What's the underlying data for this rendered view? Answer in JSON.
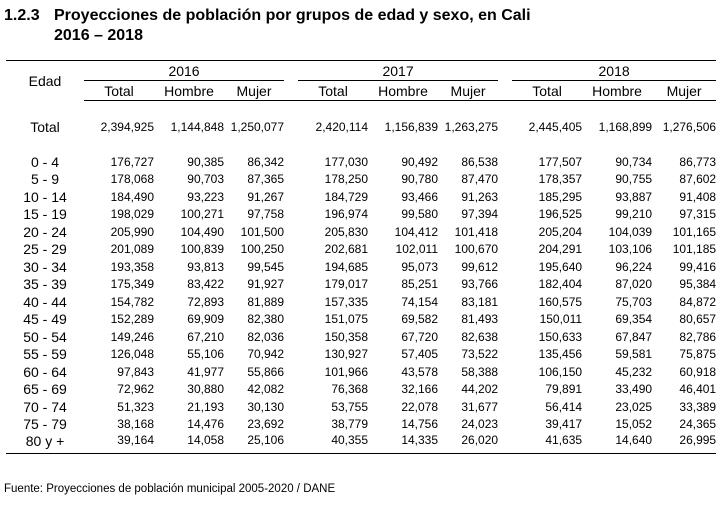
{
  "title": {
    "number": "1.2.3",
    "line1": "Proyecciones de población por grupos de edad y sexo, en Cali",
    "line2": "2016 – 2018"
  },
  "headers": {
    "edad": "Edad",
    "years": [
      "2016",
      "2017",
      "2018"
    ],
    "sub": [
      "Total",
      "Hombre",
      "Mujer"
    ]
  },
  "total": {
    "label": "Total",
    "values": [
      "2,394,925",
      "1,144,848",
      "1,250,077",
      "2,420,114",
      "1,156,839",
      "1,263,275",
      "2,445,405",
      "1,168,899",
      "1,276,506"
    ]
  },
  "rows": [
    {
      "label": "0 - 4",
      "values": [
        "176,727",
        "90,385",
        "86,342",
        "177,030",
        "90,492",
        "86,538",
        "177,507",
        "90,734",
        "86,773"
      ]
    },
    {
      "label": "5 - 9",
      "values": [
        "178,068",
        "90,703",
        "87,365",
        "178,250",
        "90,780",
        "87,470",
        "178,357",
        "90,755",
        "87,602"
      ]
    },
    {
      "label": "10 - 14",
      "values": [
        "184,490",
        "93,223",
        "91,267",
        "184,729",
        "93,466",
        "91,263",
        "185,295",
        "93,887",
        "91,408"
      ]
    },
    {
      "label": "15 - 19",
      "values": [
        "198,029",
        "100,271",
        "97,758",
        "196,974",
        "99,580",
        "97,394",
        "196,525",
        "99,210",
        "97,315"
      ]
    },
    {
      "label": "20 - 24",
      "values": [
        "205,990",
        "104,490",
        "101,500",
        "205,830",
        "104,412",
        "101,418",
        "205,204",
        "104,039",
        "101,165"
      ]
    },
    {
      "label": "25 - 29",
      "values": [
        "201,089",
        "100,839",
        "100,250",
        "202,681",
        "102,011",
        "100,670",
        "204,291",
        "103,106",
        "101,185"
      ]
    },
    {
      "label": "30 - 34",
      "values": [
        "193,358",
        "93,813",
        "99,545",
        "194,685",
        "95,073",
        "99,612",
        "195,640",
        "96,224",
        "99,416"
      ]
    },
    {
      "label": "35 - 39",
      "values": [
        "175,349",
        "83,422",
        "91,927",
        "179,017",
        "85,251",
        "93,766",
        "182,404",
        "87,020",
        "95,384"
      ]
    },
    {
      "label": "40 - 44",
      "values": [
        "154,782",
        "72,893",
        "81,889",
        "157,335",
        "74,154",
        "83,181",
        "160,575",
        "75,703",
        "84,872"
      ]
    },
    {
      "label": "45 - 49",
      "values": [
        "152,289",
        "69,909",
        "82,380",
        "151,075",
        "69,582",
        "81,493",
        "150,011",
        "69,354",
        "80,657"
      ]
    },
    {
      "label": "50 - 54",
      "values": [
        "149,246",
        "67,210",
        "82,036",
        "150,358",
        "67,720",
        "82,638",
        "150,633",
        "67,847",
        "82,786"
      ]
    },
    {
      "label": "55 - 59",
      "values": [
        "126,048",
        "55,106",
        "70,942",
        "130,927",
        "57,405",
        "73,522",
        "135,456",
        "59,581",
        "75,875"
      ]
    },
    {
      "label": "60 - 64",
      "values": [
        "97,843",
        "41,977",
        "55,866",
        "101,966",
        "43,578",
        "58,388",
        "106,150",
        "45,232",
        "60,918"
      ]
    },
    {
      "label": "65 - 69",
      "values": [
        "72,962",
        "30,880",
        "42,082",
        "76,368",
        "32,166",
        "44,202",
        "79,891",
        "33,490",
        "46,401"
      ]
    },
    {
      "label": "70 - 74",
      "values": [
        "51,323",
        "21,193",
        "30,130",
        "53,755",
        "22,078",
        "31,677",
        "56,414",
        "23,025",
        "33,389"
      ]
    },
    {
      "label": "75 - 79",
      "values": [
        "38,168",
        "14,476",
        "23,692",
        "38,779",
        "14,756",
        "24,023",
        "39,417",
        "15,052",
        "24,365"
      ]
    },
    {
      "label": "80 y +",
      "values": [
        "39,164",
        "14,058",
        "25,106",
        "40,355",
        "14,335",
        "26,020",
        "41,635",
        "14,640",
        "26,995"
      ]
    }
  ],
  "source": "Fuente: Proyecciones de población municipal 2005-2020 / DANE"
}
